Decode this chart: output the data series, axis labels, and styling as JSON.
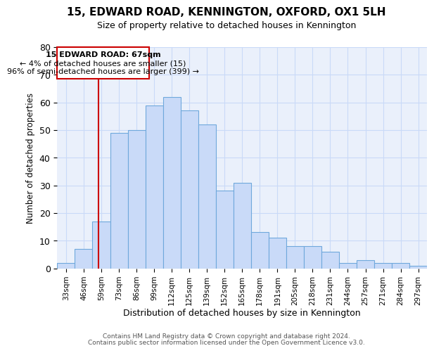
{
  "title": "15, EDWARD ROAD, KENNINGTON, OXFORD, OX1 5LH",
  "subtitle": "Size of property relative to detached houses in Kennington",
  "xlabel": "Distribution of detached houses by size in Kennington",
  "ylabel": "Number of detached properties",
  "bar_labels": [
    "33sqm",
    "46sqm",
    "59sqm",
    "73sqm",
    "86sqm",
    "99sqm",
    "112sqm",
    "125sqm",
    "139sqm",
    "152sqm",
    "165sqm",
    "178sqm",
    "191sqm",
    "205sqm",
    "218sqm",
    "231sqm",
    "244sqm",
    "257sqm",
    "271sqm",
    "284sqm",
    "297sqm"
  ],
  "bar_values": [
    2,
    7,
    17,
    49,
    50,
    59,
    62,
    57,
    52,
    28,
    31,
    13,
    11,
    8,
    8,
    6,
    2,
    3,
    2,
    2,
    1
  ],
  "bar_color": "#c9daf8",
  "bar_edge_color": "#6fa8dc",
  "grid_color": "#c9daf8",
  "annotation_box_color": "#cc0000",
  "annotation_line_color": "#cc0000",
  "annotation_text": "15 EDWARD ROAD: 67sqm",
  "annotation_line1": "← 4% of detached houses are smaller (15)",
  "annotation_line2": "96% of semi-detached houses are larger (399) →",
  "vline_x_index": 1.85,
  "ylim": [
    0,
    80
  ],
  "yticks": [
    0,
    10,
    20,
    30,
    40,
    50,
    60,
    70,
    80
  ],
  "footer1": "Contains HM Land Registry data © Crown copyright and database right 2024.",
  "footer2": "Contains public sector information licensed under the Open Government Licence v3.0.",
  "bg_color": "#ffffff",
  "plot_bg_color": "#eaf0fb"
}
